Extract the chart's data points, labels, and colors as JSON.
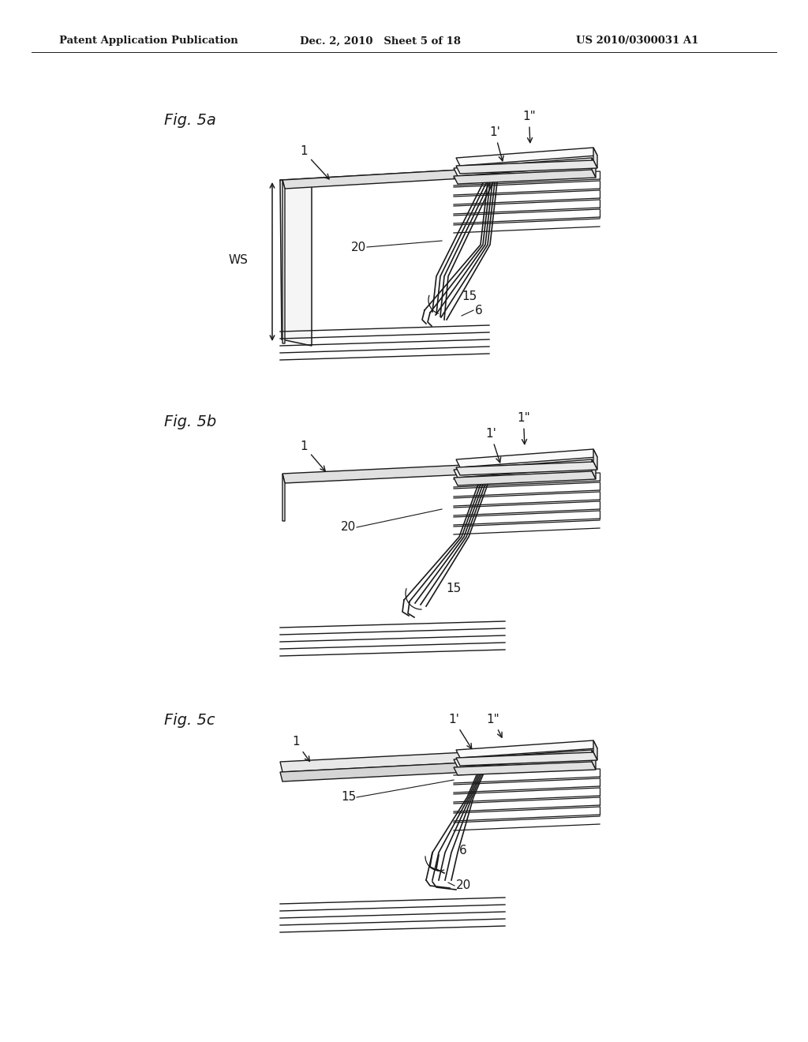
{
  "bg_color": "#ffffff",
  "header_left": "Patent Application Publication",
  "header_mid": "Dec. 2, 2010   Sheet 5 of 18",
  "header_right": "US 2010/0300031 A1",
  "lc": "#1a1a1a"
}
